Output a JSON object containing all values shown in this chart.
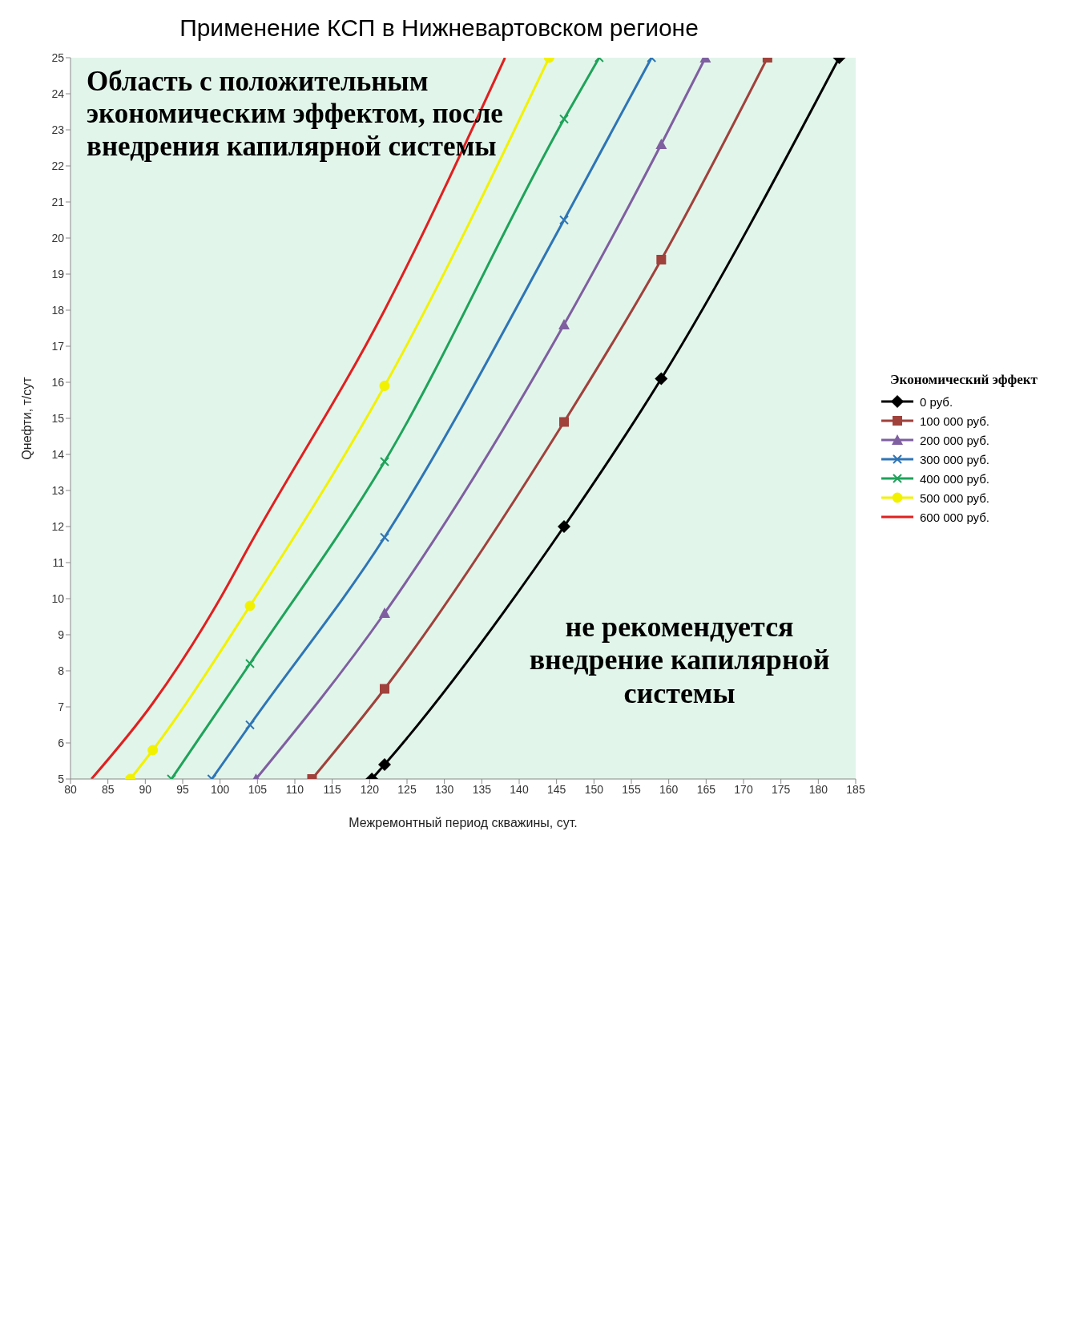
{
  "chart_data": {
    "type": "line",
    "title": "Применение КСП в Нижневартовском регионе",
    "xlabel": "Межремонтный период скважины, сут.",
    "ylabel": "Qнефти, т/сут",
    "legend_title": "Экономический эффект",
    "legend": "right",
    "xlim": [
      80,
      185
    ],
    "xticks": [
      80,
      85,
      90,
      95,
      100,
      105,
      110,
      115,
      120,
      125,
      130,
      135,
      140,
      145,
      150,
      155,
      160,
      165,
      170,
      175,
      180,
      185
    ],
    "ylim": [
      5,
      25
    ],
    "yticks": [
      5,
      6,
      7,
      8,
      9,
      10,
      11,
      12,
      13,
      14,
      15,
      16,
      17,
      18,
      19,
      20,
      21,
      22,
      23,
      24,
      25
    ],
    "grid": false,
    "bands": [
      {
        "axis": "y",
        "from": 5,
        "to": 25,
        "color": "#e2f5ea"
      }
    ],
    "annotations": [
      "Область с положительным экономическим эффектом, после внедрения капилярной системы",
      "не рекомендуется внедрение капилярной системы"
    ],
    "series": [
      {
        "name": "0 руб.",
        "color": "#000000",
        "marker": "diamond",
        "x": [
          120.3,
          122,
          146,
          159,
          182.8
        ],
        "values": [
          5,
          5.4,
          12,
          16.1,
          25
        ]
      },
      {
        "name": "100 000 руб.",
        "color": "#a0413c",
        "marker": "square",
        "x": [
          112.3,
          122,
          146,
          159,
          173.2
        ],
        "values": [
          5,
          7.5,
          14.9,
          19.4,
          25
        ]
      },
      {
        "name": "200 000 руб.",
        "color": "#7f5fa0",
        "marker": "triangle",
        "x": [
          104.8,
          122,
          146,
          159,
          164.9
        ],
        "values": [
          5,
          9.6,
          17.6,
          22.6,
          25
        ]
      },
      {
        "name": "300 000 руб.",
        "color": "#2e75b6",
        "marker": "cross",
        "x": [
          98.9,
          104,
          122,
          146,
          157.7
        ],
        "values": [
          5,
          6.5,
          11.7,
          20.5,
          25
        ]
      },
      {
        "name": "400 000 руб.",
        "color": "#1fa35a",
        "marker": "cross",
        "x": [
          93.5,
          104,
          122,
          146,
          150.7
        ],
        "values": [
          5,
          8.2,
          13.8,
          23.3,
          25
        ]
      },
      {
        "name": "500 000 руб.",
        "color": "#f2f200",
        "marker": "circle",
        "x": [
          88,
          91,
          104,
          122,
          144
        ],
        "values": [
          5,
          5.8,
          9.8,
          15.9,
          25
        ]
      },
      {
        "name": "600 000 руб.",
        "color": "#e02020",
        "marker": "none",
        "x": [
          82.8,
          91,
          100,
          104,
          122,
          138.1
        ],
        "values": [
          5,
          7.1,
          10,
          11.5,
          18,
          25
        ]
      }
    ]
  }
}
